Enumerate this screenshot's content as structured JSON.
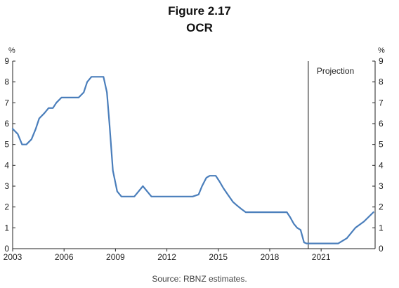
{
  "figure": {
    "label": "Figure 2.17",
    "title": "OCR",
    "source": "Source: RBNZ estimates."
  },
  "chart_data": {
    "type": "line",
    "title": "OCR",
    "y_unit_left": "%",
    "y_unit_right": "%",
    "xlabel": "",
    "ylabel": "",
    "xlim": [
      2003,
      2024.15
    ],
    "ylim": [
      0,
      9
    ],
    "y_ticks": [
      0,
      1,
      2,
      3,
      4,
      5,
      6,
      7,
      8,
      9
    ],
    "x_ticks": [
      2003,
      2006,
      2009,
      2012,
      2015,
      2018,
      2021
    ],
    "x_tick_labels": [
      "2003",
      "2006",
      "2009",
      "2012",
      "2015",
      "2018",
      "2021"
    ],
    "grid": false,
    "line_color": "#4a7ebb",
    "projection": {
      "label": "Projection",
      "x": 2020.25
    },
    "series": [
      {
        "name": "OCR",
        "x": [
          2003.0,
          2003.3,
          2003.55,
          2003.8,
          2004.1,
          2004.35,
          2004.55,
          2004.85,
          2005.1,
          2005.35,
          2005.55,
          2005.85,
          2006.1,
          2006.35,
          2006.6,
          2006.85,
          2007.15,
          2007.35,
          2007.6,
          2007.85,
          2008.1,
          2008.3,
          2008.5,
          2008.65,
          2008.85,
          2009.1,
          2009.35,
          2009.6,
          2009.85,
          2010.1,
          2010.35,
          2010.6,
          2010.85,
          2011.1,
          2011.5,
          2012.0,
          2012.5,
          2013.0,
          2013.5,
          2013.85,
          2014.05,
          2014.3,
          2014.5,
          2014.7,
          2014.85,
          2015.05,
          2015.3,
          2015.55,
          2015.85,
          2016.05,
          2016.35,
          2016.6,
          2016.9,
          2017.5,
          2018.0,
          2018.5,
          2019.0,
          2019.2,
          2019.4,
          2019.6,
          2019.8,
          2020.0,
          2020.15,
          2020.5,
          2021.0,
          2021.5,
          2022.0,
          2022.5,
          2023.0,
          2023.5,
          2024.05
        ],
        "values": [
          5.75,
          5.5,
          5.0,
          5.0,
          5.25,
          5.75,
          6.25,
          6.5,
          6.75,
          6.75,
          7.0,
          7.25,
          7.25,
          7.25,
          7.25,
          7.25,
          7.5,
          8.0,
          8.25,
          8.25,
          8.25,
          8.25,
          7.5,
          6.0,
          3.75,
          2.75,
          2.5,
          2.5,
          2.5,
          2.5,
          2.75,
          3.0,
          2.75,
          2.5,
          2.5,
          2.5,
          2.5,
          2.5,
          2.5,
          2.6,
          3.0,
          3.4,
          3.5,
          3.5,
          3.5,
          3.25,
          2.9,
          2.6,
          2.25,
          2.1,
          1.9,
          1.75,
          1.75,
          1.75,
          1.75,
          1.75,
          1.75,
          1.5,
          1.2,
          1.0,
          0.9,
          0.3,
          0.25,
          0.25,
          0.25,
          0.25,
          0.25,
          0.5,
          1.0,
          1.3,
          1.75
        ]
      }
    ]
  }
}
